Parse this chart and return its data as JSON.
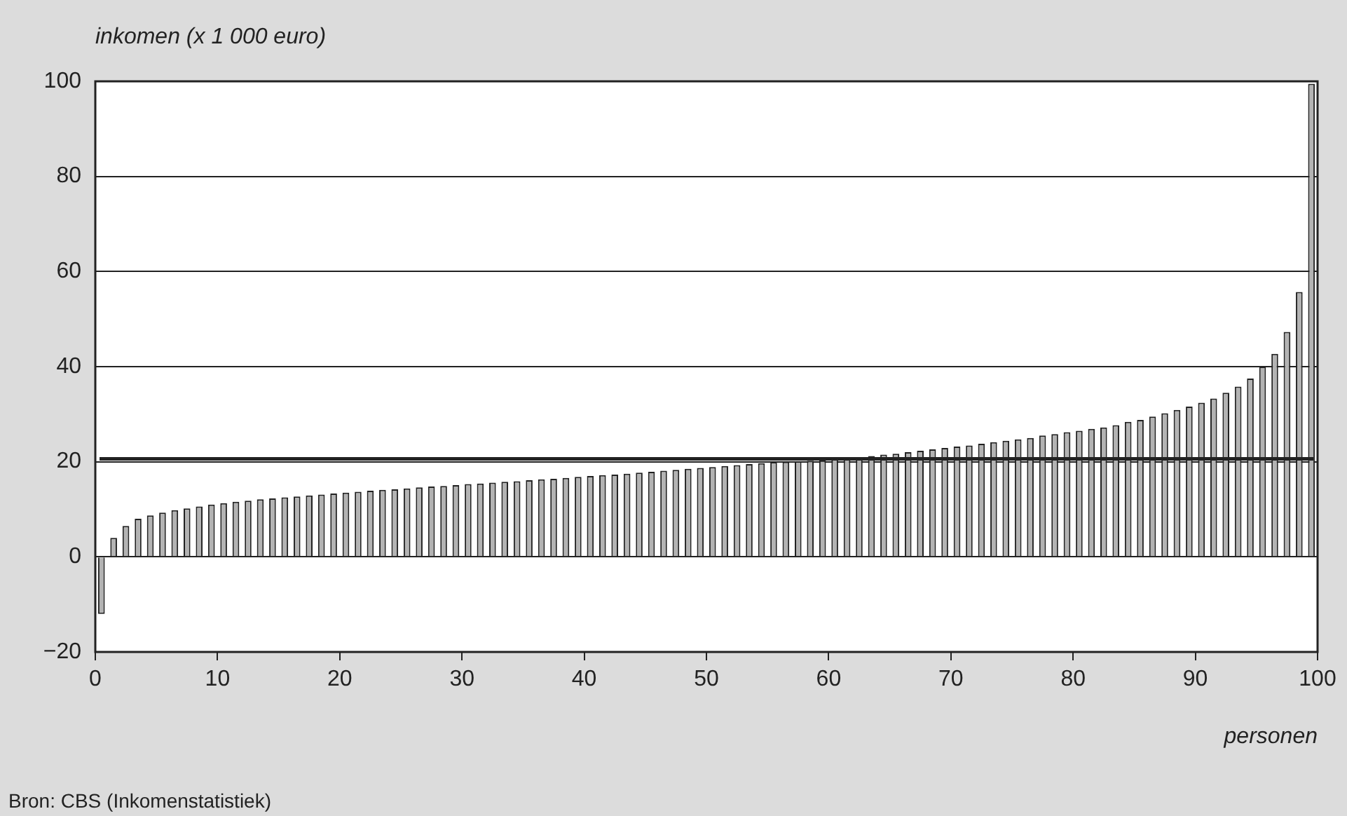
{
  "chart_data": {
    "type": "bar",
    "ylabel": "inkomen (x 1 000 euro)",
    "xlabel": "personen",
    "annotations": [
      "Bron: CBS (Inkomenstatistiek)"
    ],
    "x": [
      0.5,
      1.5,
      2.5,
      3.5,
      4.5,
      5.5,
      6.5,
      7.5,
      8.5,
      9.5,
      10.5,
      11.5,
      12.5,
      13.5,
      14.5,
      15.5,
      16.5,
      17.5,
      18.5,
      19.5,
      20.5,
      21.5,
      22.5,
      23.5,
      24.5,
      25.5,
      26.5,
      27.5,
      28.5,
      29.5,
      30.5,
      31.5,
      32.5,
      33.5,
      34.5,
      35.5,
      36.5,
      37.5,
      38.5,
      39.5,
      40.5,
      41.5,
      42.5,
      43.5,
      44.5,
      45.5,
      46.5,
      47.5,
      48.5,
      49.5,
      50.5,
      51.5,
      52.5,
      53.5,
      54.5,
      55.5,
      56.5,
      57.5,
      58.5,
      59.5,
      60.5,
      61.5,
      62.5,
      63.5,
      64.5,
      65.5,
      66.5,
      67.5,
      68.5,
      69.5,
      70.5,
      71.5,
      72.5,
      73.5,
      74.5,
      75.5,
      76.5,
      77.5,
      78.5,
      79.5,
      80.5,
      81.5,
      82.5,
      83.5,
      84.5,
      85.5,
      86.5,
      87.5,
      88.5,
      89.5,
      90.5,
      91.5,
      92.5,
      93.5,
      94.5,
      95.5,
      96.5,
      97.5,
      98.5,
      99.5
    ],
    "values": [
      -12,
      4,
      6.5,
      8,
      8.7,
      9.3,
      9.8,
      10.2,
      10.6,
      11.0,
      11.3,
      11.6,
      11.8,
      12.1,
      12.3,
      12.5,
      12.7,
      12.9,
      13.1,
      13.3,
      13.5,
      13.7,
      13.9,
      14.1,
      14.2,
      14.4,
      14.6,
      14.8,
      14.9,
      15.1,
      15.3,
      15.4,
      15.6,
      15.8,
      15.9,
      16.1,
      16.3,
      16.4,
      16.6,
      16.8,
      17.0,
      17.2,
      17.3,
      17.5,
      17.7,
      17.9,
      18.1,
      18.3,
      18.5,
      18.7,
      18.9,
      19.1,
      19.3,
      19.5,
      19.7,
      19.9,
      20.0,
      20.1,
      20.2,
      20.3,
      20.5,
      20.8,
      21.0,
      21.2,
      21.5,
      21.7,
      22.0,
      22.3,
      22.6,
      22.9,
      23.2,
      23.4,
      23.8,
      24.1,
      24.4,
      24.7,
      25.0,
      25.5,
      25.8,
      26.2,
      26.5,
      26.9,
      27.2,
      27.7,
      28.4,
      28.8,
      29.5,
      30.2,
      30.9,
      31.6,
      32.4,
      33.3,
      34.5,
      35.8,
      37.5,
      40,
      42.7,
      47.3,
      55.7,
      99.5
    ],
    "color": "#b3b3b3",
    "xlim": [
      0,
      100
    ],
    "xticks": [
      0,
      10,
      20,
      30,
      40,
      50,
      60,
      70,
      80,
      90,
      100
    ],
    "ylim": [
      -20,
      100
    ],
    "yticks": [
      -20,
      0,
      20,
      40,
      60,
      80,
      100
    ],
    "ref_lines": [
      {
        "axis": "y",
        "value": 20.6,
        "color": "#222222"
      }
    ],
    "grid": "y",
    "legend": false
  }
}
